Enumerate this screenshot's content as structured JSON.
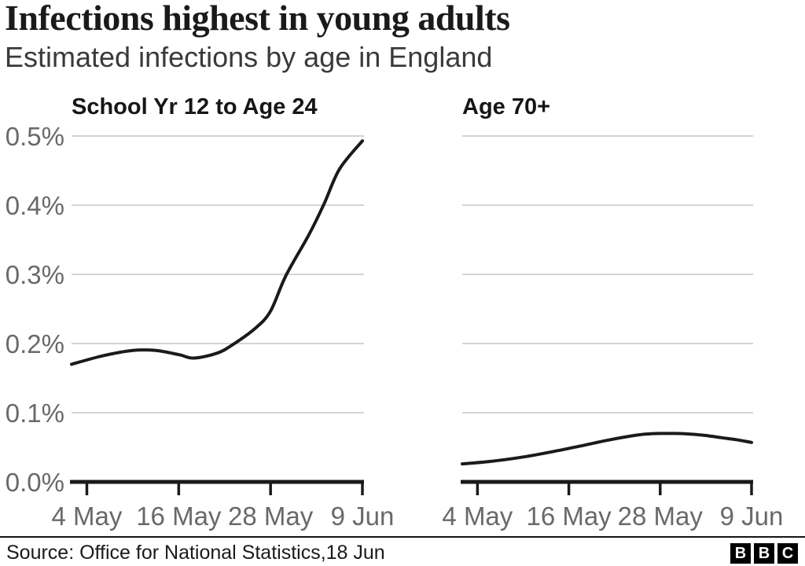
{
  "header": {
    "title": "Infections highest in young adults",
    "subtitle": "Estimated infections by age in England"
  },
  "chart_data": [
    {
      "type": "line",
      "title": "School Yr 12 to Age 24",
      "unit": "%",
      "ylim": [
        0,
        0.5
      ],
      "x_range": [
        "2 May",
        "9 Jun"
      ],
      "grid": true,
      "show_y_labels": true,
      "y_ticks": [
        {
          "label": "0.5%",
          "value": 0.5
        },
        {
          "label": "0.4%",
          "value": 0.4
        },
        {
          "label": "0.3%",
          "value": 0.3
        },
        {
          "label": "0.2%",
          "value": 0.2
        },
        {
          "label": "0.1%",
          "value": 0.1
        },
        {
          "label": "0.0%",
          "value": 0.0
        }
      ],
      "x_ticks": [
        {
          "label": "4 May",
          "day": 2
        },
        {
          "label": "16 May",
          "day": 14
        },
        {
          "label": "28 May",
          "day": 26
        },
        {
          "label": "9 Jun",
          "day": 38
        }
      ],
      "points": [
        {
          "date": "2 May",
          "day": 0,
          "value": 0.17
        },
        {
          "date": "6 May",
          "day": 4,
          "value": 0.182
        },
        {
          "date": "10 May",
          "day": 8,
          "value": 0.19
        },
        {
          "date": "13 May",
          "day": 11,
          "value": 0.19
        },
        {
          "date": "16 May",
          "day": 14,
          "value": 0.184
        },
        {
          "date": "18 May",
          "day": 16,
          "value": 0.179
        },
        {
          "date": "21 May",
          "day": 19,
          "value": 0.186
        },
        {
          "date": "23 May",
          "day": 21,
          "value": 0.198
        },
        {
          "date": "26 May",
          "day": 24,
          "value": 0.222
        },
        {
          "date": "28 May",
          "day": 26,
          "value": 0.247
        },
        {
          "date": "30 May",
          "day": 28,
          "value": 0.298
        },
        {
          "date": "2 Jun",
          "day": 31,
          "value": 0.357
        },
        {
          "date": "4 Jun",
          "day": 33,
          "value": 0.402
        },
        {
          "date": "6 Jun",
          "day": 35,
          "value": 0.452
        },
        {
          "date": "9 Jun",
          "day": 38,
          "value": 0.493
        }
      ]
    },
    {
      "type": "line",
      "title": "Age 70+",
      "unit": "%",
      "ylim": [
        0,
        0.5
      ],
      "x_range": [
        "2 May",
        "9 Jun"
      ],
      "grid": true,
      "show_y_labels": false,
      "y_ticks": [
        {
          "label": "0.5%",
          "value": 0.5
        },
        {
          "label": "0.4%",
          "value": 0.4
        },
        {
          "label": "0.3%",
          "value": 0.3
        },
        {
          "label": "0.2%",
          "value": 0.2
        },
        {
          "label": "0.1%",
          "value": 0.1
        },
        {
          "label": "0.0%",
          "value": 0.0
        }
      ],
      "x_ticks": [
        {
          "label": "4 May",
          "day": 2
        },
        {
          "label": "16 May",
          "day": 14
        },
        {
          "label": "28 May",
          "day": 26
        },
        {
          "label": "9 Jun",
          "day": 38
        }
      ],
      "points": [
        {
          "date": "2 May",
          "day": 0,
          "value": 0.026
        },
        {
          "date": "6 May",
          "day": 4,
          "value": 0.03
        },
        {
          "date": "10 May",
          "day": 8,
          "value": 0.036
        },
        {
          "date": "14 May",
          "day": 12,
          "value": 0.044
        },
        {
          "date": "18 May",
          "day": 16,
          "value": 0.053
        },
        {
          "date": "21 May",
          "day": 19,
          "value": 0.06
        },
        {
          "date": "24 May",
          "day": 22,
          "value": 0.066
        },
        {
          "date": "26 May",
          "day": 24,
          "value": 0.069
        },
        {
          "date": "28 May",
          "day": 26,
          "value": 0.07
        },
        {
          "date": "30 May",
          "day": 28,
          "value": 0.07
        },
        {
          "date": "1 Jun",
          "day": 30,
          "value": 0.069
        },
        {
          "date": "3 Jun",
          "day": 32,
          "value": 0.067
        },
        {
          "date": "5 Jun",
          "day": 34,
          "value": 0.064
        },
        {
          "date": "7 Jun",
          "day": 36,
          "value": 0.061
        },
        {
          "date": "9 Jun",
          "day": 38,
          "value": 0.057
        }
      ]
    }
  ],
  "footer": {
    "source": "Source: Office for National Statistics,18 Jun",
    "logo_letters": [
      "B",
      "B",
      "C"
    ]
  },
  "colors": {
    "background": "#ffffff",
    "text_dark": "#1a1a1a",
    "axis_text": "#696969",
    "gridline": "#d4d4d4",
    "line": "#1a1a1a"
  }
}
